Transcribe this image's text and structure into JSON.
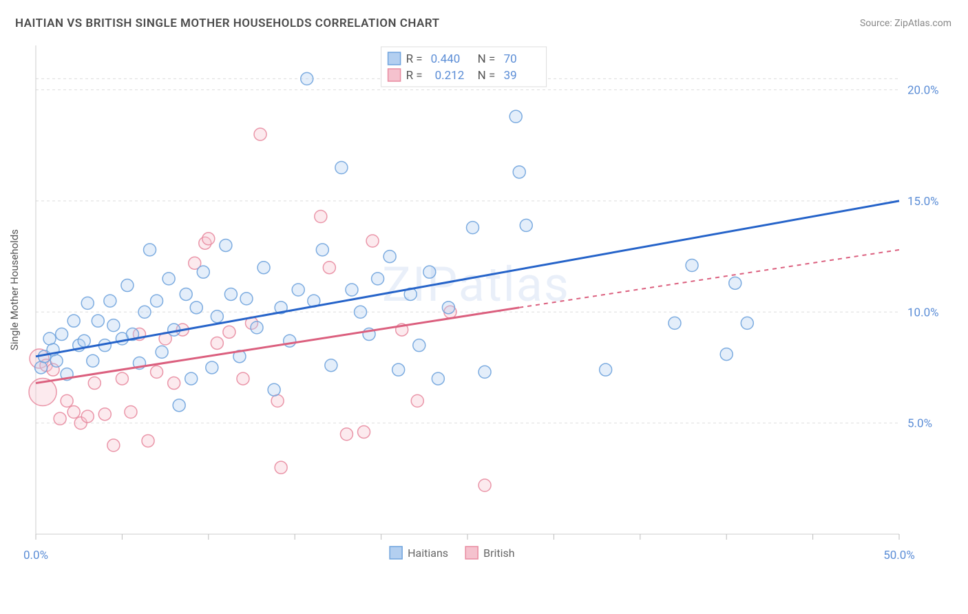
{
  "title": "HAITIAN VS BRITISH SINGLE MOTHER HOUSEHOLDS CORRELATION CHART",
  "source": "Source: ZipAtlas.com",
  "watermark": "ZIPatlas",
  "y_axis_label": "Single Mother Households",
  "chart": {
    "type": "scatter",
    "xlim": [
      0,
      50
    ],
    "ylim": [
      0,
      22
    ],
    "x_tick_start": 0,
    "x_tick_end": 50,
    "y_grid": [
      5,
      10,
      15,
      20
    ],
    "y_labels": [
      "5.0%",
      "10.0%",
      "15.0%",
      "20.0%"
    ],
    "x_labels_min": "0.0%",
    "x_labels_max": "50.0%",
    "x_ticks": [
      0,
      5,
      10,
      15,
      20,
      25,
      30,
      35,
      40,
      45,
      50
    ],
    "plot_bg": "#ffffff",
    "grid_color": "#dddddd",
    "axis_color": "#cccccc"
  },
  "series": {
    "haitians": {
      "label": "Haitians",
      "fill": "#b3cff0",
      "stroke": "#6fa3dd",
      "trend_color": "#2563c9",
      "r_value": "0.440",
      "n_value": "70",
      "trend": {
        "x1": 0,
        "y1": 8.0,
        "x2": 50,
        "y2": 15.0
      },
      "points": [
        [
          0.3,
          7.5
        ],
        [
          0.5,
          8.0
        ],
        [
          0.8,
          8.8
        ],
        [
          1.0,
          8.3
        ],
        [
          1.2,
          7.8
        ],
        [
          1.5,
          9.0
        ],
        [
          1.8,
          7.2
        ],
        [
          2.2,
          9.6
        ],
        [
          2.5,
          8.5
        ],
        [
          2.8,
          8.7
        ],
        [
          3.0,
          10.4
        ],
        [
          3.3,
          7.8
        ],
        [
          3.6,
          9.6
        ],
        [
          4.0,
          8.5
        ],
        [
          4.3,
          10.5
        ],
        [
          4.5,
          9.4
        ],
        [
          5.0,
          8.8
        ],
        [
          5.3,
          11.2
        ],
        [
          5.6,
          9.0
        ],
        [
          6.0,
          7.7
        ],
        [
          6.3,
          10.0
        ],
        [
          6.6,
          12.8
        ],
        [
          7.0,
          10.5
        ],
        [
          7.3,
          8.2
        ],
        [
          7.7,
          11.5
        ],
        [
          8.0,
          9.2
        ],
        [
          8.3,
          5.8
        ],
        [
          8.7,
          10.8
        ],
        [
          9.0,
          7.0
        ],
        [
          9.3,
          10.2
        ],
        [
          9.7,
          11.8
        ],
        [
          10.2,
          7.5
        ],
        [
          10.5,
          9.8
        ],
        [
          11.0,
          13.0
        ],
        [
          11.3,
          10.8
        ],
        [
          11.8,
          8.0
        ],
        [
          12.2,
          10.6
        ],
        [
          12.8,
          9.3
        ],
        [
          13.2,
          12.0
        ],
        [
          13.8,
          6.5
        ],
        [
          14.2,
          10.2
        ],
        [
          14.7,
          8.7
        ],
        [
          15.2,
          11.0
        ],
        [
          15.7,
          20.5
        ],
        [
          16.1,
          10.5
        ],
        [
          16.6,
          12.8
        ],
        [
          17.1,
          7.6
        ],
        [
          17.7,
          16.5
        ],
        [
          18.3,
          11.0
        ],
        [
          18.8,
          10.0
        ],
        [
          19.3,
          9.0
        ],
        [
          19.8,
          11.5
        ],
        [
          20.5,
          12.5
        ],
        [
          21.0,
          7.4
        ],
        [
          21.7,
          10.8
        ],
        [
          22.2,
          8.5
        ],
        [
          22.8,
          11.8
        ],
        [
          23.3,
          7.0
        ],
        [
          23.9,
          10.2
        ],
        [
          25.3,
          13.8
        ],
        [
          26.0,
          7.3
        ],
        [
          27.8,
          18.8
        ],
        [
          28.0,
          16.3
        ],
        [
          28.4,
          13.9
        ],
        [
          33.0,
          7.4
        ],
        [
          37.0,
          9.5
        ],
        [
          38.0,
          12.1
        ],
        [
          40.0,
          8.1
        ],
        [
          40.5,
          11.3
        ],
        [
          41.2,
          9.5
        ]
      ]
    },
    "british": {
      "label": "British",
      "fill": "#f5c2ce",
      "stroke": "#e88ba0",
      "trend_color": "#db5f7e",
      "r_value": "0.212",
      "n_value": "39",
      "trend_solid": {
        "x1": 0,
        "y1": 6.8,
        "x2": 28,
        "y2": 10.2
      },
      "trend_dash": {
        "x1": 28,
        "y1": 10.2,
        "x2": 50,
        "y2": 12.8
      },
      "points": [
        [
          0.2,
          7.9,
          14
        ],
        [
          0.4,
          6.4,
          20
        ],
        [
          0.6,
          7.6
        ],
        [
          1.0,
          7.4
        ],
        [
          1.4,
          5.2
        ],
        [
          1.8,
          6.0
        ],
        [
          2.2,
          5.5
        ],
        [
          2.6,
          5.0
        ],
        [
          3.0,
          5.3
        ],
        [
          3.4,
          6.8
        ],
        [
          4.0,
          5.4
        ],
        [
          4.5,
          4.0
        ],
        [
          5.0,
          7.0
        ],
        [
          5.5,
          5.5
        ],
        [
          6.0,
          9.0
        ],
        [
          6.5,
          4.2
        ],
        [
          7.0,
          7.3
        ],
        [
          7.5,
          8.8
        ],
        [
          8.0,
          6.8
        ],
        [
          8.5,
          9.2
        ],
        [
          9.2,
          12.2
        ],
        [
          9.8,
          13.1
        ],
        [
          10.0,
          13.3
        ],
        [
          10.5,
          8.6
        ],
        [
          11.2,
          9.1
        ],
        [
          12.0,
          7.0
        ],
        [
          12.5,
          9.5
        ],
        [
          13.0,
          18.0
        ],
        [
          14.0,
          6.0
        ],
        [
          14.2,
          3.0
        ],
        [
          16.5,
          14.3
        ],
        [
          17.0,
          12.0
        ],
        [
          18.0,
          4.5
        ],
        [
          19.0,
          4.6
        ],
        [
          19.5,
          13.2
        ],
        [
          21.2,
          9.2
        ],
        [
          22.1,
          6.0
        ],
        [
          24.0,
          10.0
        ],
        [
          26.0,
          2.2
        ]
      ]
    }
  },
  "legend_top": {
    "r_label": "R =",
    "n_label": "N ="
  },
  "bottom_legend": {
    "items": [
      "Haitians",
      "British"
    ]
  }
}
